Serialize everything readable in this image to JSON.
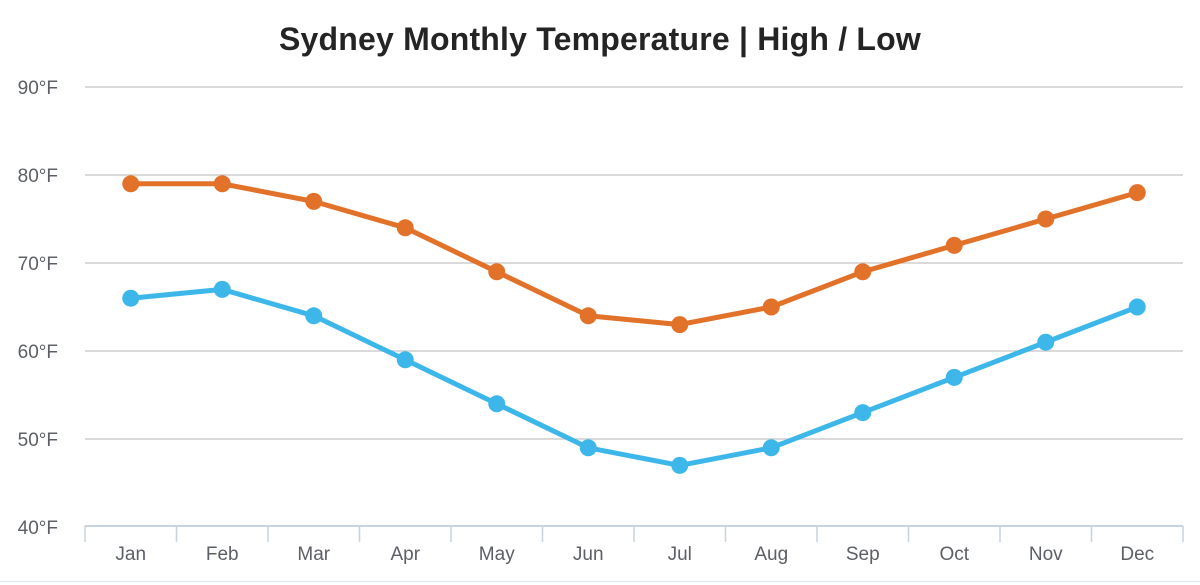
{
  "title": "Sydney Monthly Temperature | High / Low",
  "chart_data": {
    "type": "line",
    "title": "Sydney Monthly Temperature | High / Low",
    "categories": [
      "Jan",
      "Feb",
      "Mar",
      "Apr",
      "May",
      "Jun",
      "Jul",
      "Aug",
      "Sep",
      "Oct",
      "Nov",
      "Dec"
    ],
    "series": [
      {
        "name": "High",
        "color": "#e27129",
        "values": [
          79,
          79,
          77,
          74,
          69,
          64,
          63,
          65,
          69,
          72,
          75,
          78
        ]
      },
      {
        "name": "Low",
        "color": "#3db7e9",
        "values": [
          66,
          67,
          64,
          59,
          54,
          49,
          47,
          49,
          53,
          57,
          61,
          65
        ]
      }
    ],
    "y_axis": {
      "tick_suffix": "°F",
      "ticks": [
        40,
        50,
        60,
        70,
        80,
        90
      ],
      "min": 40,
      "max": 92
    },
    "x_axis": {
      "label": ""
    },
    "grid": true,
    "legend_position": "none"
  },
  "colors": {
    "title_text": "#242424",
    "axis_label_text": "#5c6066",
    "gridline": "#cdcdcd",
    "x_axis_line": "#c7d3de",
    "bottom_border": "#e2eaf2",
    "background": "#ffffff",
    "high_series": "#e27129",
    "low_series": "#3db7e9"
  }
}
